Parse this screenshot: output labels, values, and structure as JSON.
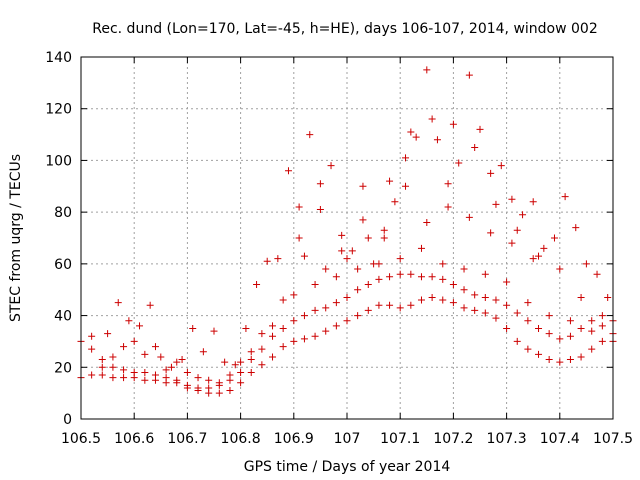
{
  "chart_data": {
    "type": "scatter",
    "title": "Rec. dund (Lon=170, Lat=-45, h=HE), days 106-107, 2014, window 002",
    "xlabel": "GPS time / Days of year 2014",
    "ylabel": "STEC from uqrg / TECUs",
    "xlim": [
      106.5,
      107.5
    ],
    "ylim": [
      0,
      140
    ],
    "x_ticks": [
      106.5,
      106.6,
      106.7,
      106.8,
      106.9,
      107,
      107.1,
      107.2,
      107.3,
      107.4,
      107.5
    ],
    "x_tick_labels": [
      "106.5",
      "106.6",
      "106.7",
      "106.8",
      "106.9",
      "107",
      "107.1",
      "107.2",
      "107.3",
      "107.4",
      "107.5"
    ],
    "y_ticks": [
      0,
      20,
      40,
      60,
      80,
      100,
      120,
      140
    ],
    "y_tick_labels": [
      "0",
      "20",
      "40",
      "60",
      "80",
      "100",
      "120",
      "140"
    ],
    "grid": true,
    "marker": "plus",
    "marker_color": "#cc0000",
    "series": [
      {
        "points": [
          [
            106.5,
            16
          ],
          [
            106.52,
            17
          ],
          [
            106.54,
            17
          ],
          [
            106.56,
            16
          ],
          [
            106.58,
            16
          ],
          [
            106.6,
            16
          ],
          [
            106.62,
            15
          ],
          [
            106.64,
            15
          ],
          [
            106.66,
            14
          ],
          [
            106.68,
            14
          ],
          [
            106.7,
            12
          ],
          [
            106.72,
            11
          ],
          [
            106.74,
            10
          ],
          [
            106.76,
            10
          ],
          [
            106.78,
            11
          ],
          [
            106.8,
            14
          ],
          [
            106.82,
            18
          ],
          [
            106.84,
            21
          ],
          [
            106.86,
            24
          ],
          [
            106.88,
            28
          ],
          [
            106.9,
            30
          ],
          [
            106.92,
            31
          ],
          [
            106.94,
            32
          ],
          [
            106.96,
            34
          ],
          [
            106.98,
            36
          ],
          [
            107.0,
            38
          ],
          [
            107.02,
            40
          ],
          [
            107.04,
            42
          ],
          [
            107.06,
            44
          ],
          [
            107.08,
            44
          ],
          [
            107.1,
            43
          ],
          [
            107.12,
            44
          ],
          [
            107.14,
            46
          ],
          [
            107.16,
            47
          ],
          [
            107.18,
            46
          ],
          [
            107.2,
            45
          ],
          [
            107.22,
            43
          ],
          [
            107.24,
            42
          ],
          [
            107.26,
            41
          ],
          [
            107.28,
            39
          ],
          [
            107.3,
            35
          ],
          [
            107.32,
            30
          ],
          [
            107.34,
            27
          ],
          [
            107.36,
            25
          ],
          [
            107.38,
            23
          ],
          [
            107.4,
            22
          ],
          [
            107.42,
            23
          ],
          [
            107.44,
            24
          ],
          [
            107.46,
            27
          ],
          [
            107.48,
            30
          ],
          [
            107.5,
            33
          ],
          [
            106.5,
            30
          ],
          [
            106.52,
            27
          ],
          [
            106.54,
            23
          ],
          [
            106.56,
            20
          ],
          [
            106.58,
            19
          ],
          [
            106.6,
            18
          ],
          [
            106.62,
            18
          ],
          [
            106.64,
            17
          ],
          [
            106.66,
            16
          ],
          [
            106.68,
            15
          ],
          [
            106.7,
            13
          ],
          [
            106.72,
            12
          ],
          [
            106.74,
            12
          ],
          [
            106.76,
            13
          ],
          [
            106.78,
            15
          ],
          [
            106.8,
            18
          ],
          [
            106.82,
            23
          ],
          [
            106.84,
            27
          ],
          [
            106.86,
            32
          ],
          [
            106.88,
            35
          ],
          [
            106.9,
            38
          ],
          [
            106.92,
            40
          ],
          [
            106.94,
            42
          ],
          [
            106.96,
            43
          ],
          [
            106.98,
            45
          ],
          [
            107.0,
            47
          ],
          [
            107.02,
            50
          ],
          [
            107.04,
            52
          ],
          [
            107.06,
            54
          ],
          [
            107.08,
            55
          ],
          [
            107.1,
            56
          ],
          [
            107.12,
            56
          ],
          [
            107.14,
            55
          ],
          [
            107.16,
            55
          ],
          [
            107.18,
            54
          ],
          [
            107.2,
            52
          ],
          [
            107.22,
            50
          ],
          [
            107.24,
            48
          ],
          [
            107.26,
            47
          ],
          [
            107.28,
            46
          ],
          [
            107.3,
            44
          ],
          [
            107.32,
            41
          ],
          [
            107.34,
            38
          ],
          [
            107.36,
            35
          ],
          [
            107.38,
            33
          ],
          [
            107.4,
            31
          ],
          [
            107.42,
            32
          ],
          [
            107.44,
            35
          ],
          [
            107.46,
            38
          ],
          [
            107.48,
            40
          ],
          [
            107.5,
            38
          ],
          [
            106.55,
            33
          ],
          [
            106.57,
            45
          ],
          [
            106.59,
            38
          ],
          [
            106.61,
            36
          ],
          [
            106.63,
            44
          ],
          [
            106.65,
            24
          ],
          [
            106.67,
            20
          ],
          [
            106.69,
            23
          ],
          [
            106.71,
            35
          ],
          [
            106.73,
            26
          ],
          [
            106.75,
            34
          ],
          [
            106.77,
            22
          ],
          [
            106.79,
            21
          ],
          [
            106.81,
            35
          ],
          [
            106.83,
            52
          ],
          [
            106.85,
            61
          ],
          [
            106.87,
            62
          ],
          [
            106.89,
            96
          ],
          [
            106.91,
            82
          ],
          [
            106.93,
            110
          ],
          [
            106.95,
            91
          ],
          [
            106.97,
            98
          ],
          [
            106.99,
            71
          ],
          [
            107.01,
            65
          ],
          [
            107.03,
            90
          ],
          [
            107.05,
            60
          ],
          [
            107.07,
            70
          ],
          [
            107.09,
            84
          ],
          [
            107.11,
            101
          ],
          [
            107.13,
            109
          ],
          [
            107.15,
            135
          ],
          [
            107.17,
            108
          ],
          [
            107.19,
            91
          ],
          [
            107.21,
            99
          ],
          [
            107.23,
            133
          ],
          [
            107.25,
            112
          ],
          [
            107.27,
            95
          ],
          [
            107.29,
            98
          ],
          [
            107.31,
            85
          ],
          [
            107.33,
            79
          ],
          [
            107.35,
            84
          ],
          [
            107.37,
            66
          ],
          [
            107.39,
            70
          ],
          [
            107.41,
            86
          ],
          [
            107.43,
            74
          ],
          [
            107.45,
            60
          ],
          [
            107.47,
            56
          ],
          [
            107.49,
            47
          ],
          [
            106.52,
            32
          ],
          [
            106.56,
            24
          ],
          [
            106.6,
            30
          ],
          [
            106.64,
            28
          ],
          [
            106.68,
            22
          ],
          [
            106.72,
            16
          ],
          [
            106.76,
            14
          ],
          [
            106.8,
            22
          ],
          [
            106.84,
            33
          ],
          [
            106.88,
            46
          ],
          [
            106.92,
            63
          ],
          [
            106.96,
            58
          ],
          [
            107.0,
            62
          ],
          [
            107.04,
            70
          ],
          [
            107.08,
            92
          ],
          [
            107.12,
            111
          ],
          [
            107.16,
            116
          ],
          [
            107.2,
            114
          ],
          [
            107.24,
            105
          ],
          [
            107.28,
            83
          ],
          [
            107.32,
            73
          ],
          [
            107.36,
            63
          ],
          [
            107.4,
            58
          ],
          [
            107.44,
            47
          ],
          [
            107.48,
            36
          ],
          [
            106.54,
            20
          ],
          [
            106.58,
            28
          ],
          [
            106.62,
            25
          ],
          [
            106.66,
            19
          ],
          [
            106.7,
            18
          ],
          [
            106.74,
            15
          ],
          [
            106.78,
            17
          ],
          [
            106.82,
            26
          ],
          [
            106.86,
            36
          ],
          [
            106.9,
            48
          ],
          [
            106.94,
            52
          ],
          [
            106.98,
            55
          ],
          [
            107.02,
            58
          ],
          [
            107.06,
            60
          ],
          [
            107.1,
            62
          ],
          [
            107.14,
            66
          ],
          [
            107.18,
            60
          ],
          [
            107.22,
            58
          ],
          [
            107.26,
            56
          ],
          [
            107.3,
            53
          ],
          [
            107.34,
            45
          ],
          [
            107.38,
            40
          ],
          [
            107.42,
            38
          ],
          [
            107.46,
            34
          ],
          [
            107.5,
            30
          ],
          [
            106.91,
            70
          ],
          [
            106.95,
            81
          ],
          [
            106.99,
            65
          ],
          [
            107.03,
            77
          ],
          [
            107.07,
            73
          ],
          [
            107.11,
            90
          ],
          [
            107.15,
            76
          ],
          [
            107.19,
            82
          ],
          [
            107.23,
            78
          ],
          [
            107.27,
            72
          ],
          [
            107.31,
            68
          ],
          [
            107.35,
            62
          ]
        ]
      }
    ]
  }
}
